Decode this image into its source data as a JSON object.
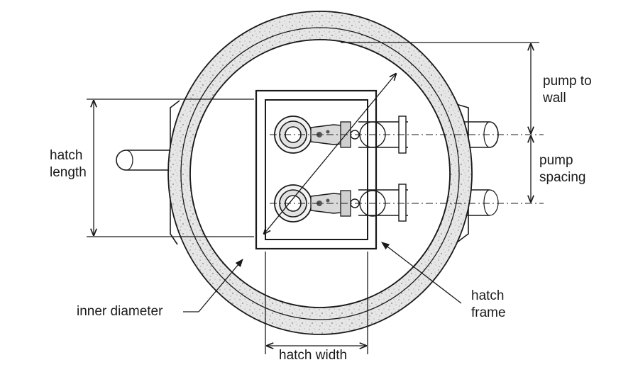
{
  "labels": {
    "pump_to_wall": [
      "pump to",
      "wall"
    ],
    "pump_spacing": [
      "pump",
      "spacing"
    ],
    "hatch_length": [
      "hatch",
      "length"
    ],
    "hatch_frame": [
      "hatch",
      "frame"
    ],
    "inner_diameter": "inner diameter",
    "hatch_width": "hatch width"
  },
  "colors": {
    "line": "#1a1a1a",
    "concrete_fill": "#e4e4e4",
    "concrete_speckle": "#9a9a9a",
    "pump_fill": "#d9d9d9"
  },
  "icons": {
    "pump": "pump-icon",
    "pipe": "pipe-icon"
  }
}
